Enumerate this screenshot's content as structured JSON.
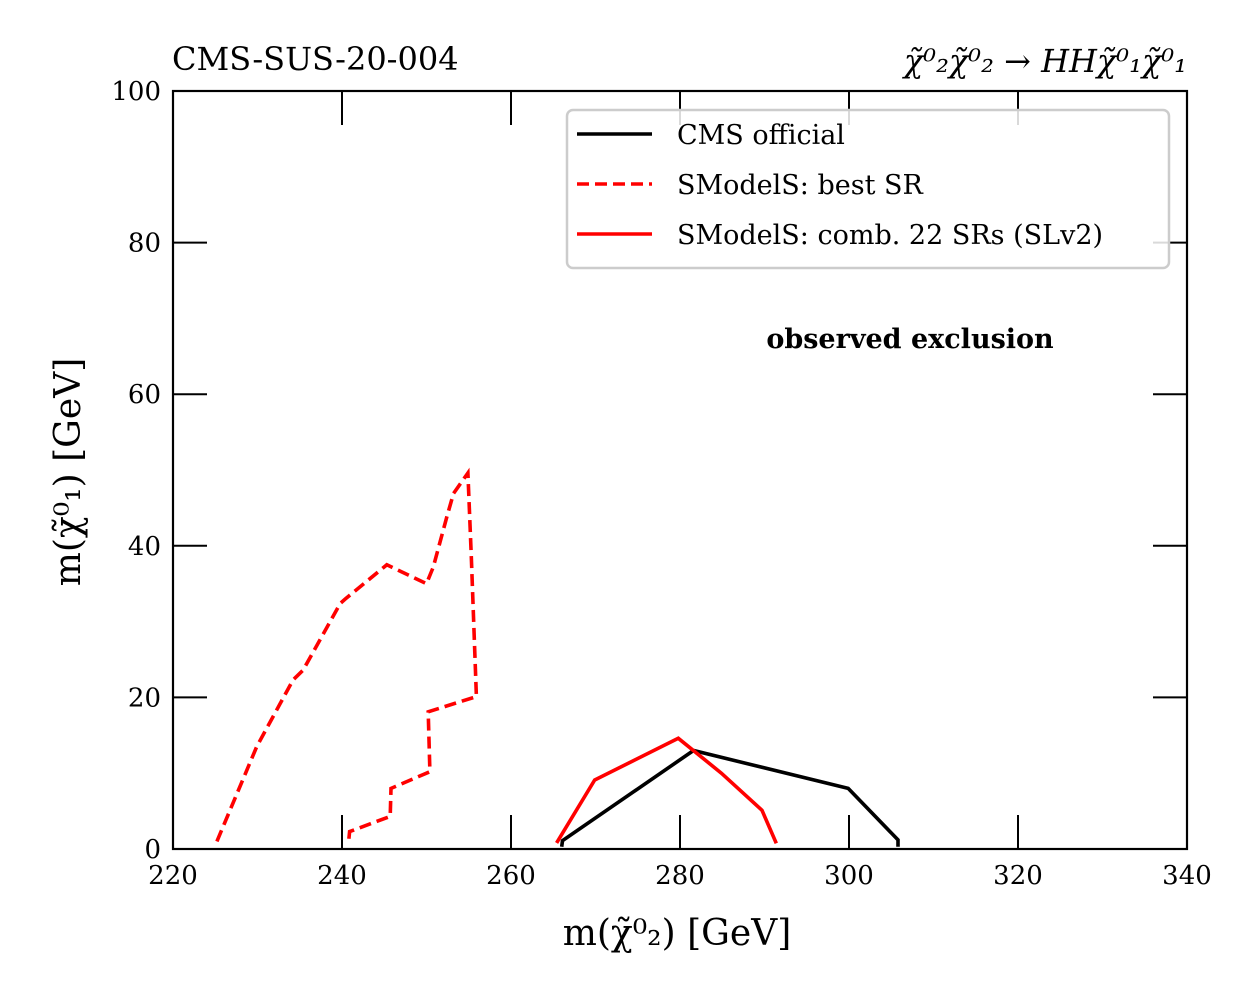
{
  "chart_data": {
    "type": "line",
    "title_left": "CMS-SUS-20-004",
    "title_right": "χ̃⁰₂χ̃⁰₂ → HHχ̃⁰₁χ̃⁰₁",
    "xlabel": "m(χ̃⁰₂) [GeV]",
    "ylabel": "m(χ̃⁰₁) [GeV]",
    "xlim": [
      220,
      340
    ],
    "ylim": [
      0,
      100
    ],
    "xticks": [
      220,
      240,
      260,
      280,
      300,
      320,
      340
    ],
    "yticks": [
      0,
      20,
      40,
      60,
      80,
      100
    ],
    "grid": false,
    "annotation": "observed exclusion",
    "legend_position": "top-right",
    "series": [
      {
        "name": "CMS official",
        "color": "#000000",
        "style": "solid",
        "x": [
          266.0,
          266.1,
          281.6,
          299.9,
          305.8,
          305.8
        ],
        "y": [
          0.3,
          1.1,
          13.0,
          8.0,
          1.2,
          0.3
        ]
      },
      {
        "name": "SModelS: best SR",
        "color": "#ff0000",
        "style": "dashed",
        "x": [
          225.2,
          229.9,
          234.2,
          235.4,
          239.8,
          240.4,
          245.3,
          250.0,
          250.8,
          252.4,
          253.2,
          254.9,
          255.3,
          255.9,
          250.2,
          250.4,
          245.8,
          245.7,
          240.9,
          240.8
        ],
        "y": [
          1.0,
          13.5,
          22.3,
          23.6,
          32.4,
          33.0,
          37.5,
          35.0,
          37.2,
          43.8,
          46.9,
          49.6,
          38.6,
          20.1,
          18.1,
          10.2,
          8.0,
          4.3,
          2.3,
          1.2
        ]
      },
      {
        "name": "SModelS: comb. 22 SRs (SLv2)",
        "color": "#ff0000",
        "style": "solid",
        "x": [
          265.4,
          269.9,
          279.8,
          284.9,
          289.7,
          291.4
        ],
        "y": [
          0.8,
          9.1,
          14.6,
          10.0,
          5.1,
          0.75
        ]
      }
    ]
  }
}
